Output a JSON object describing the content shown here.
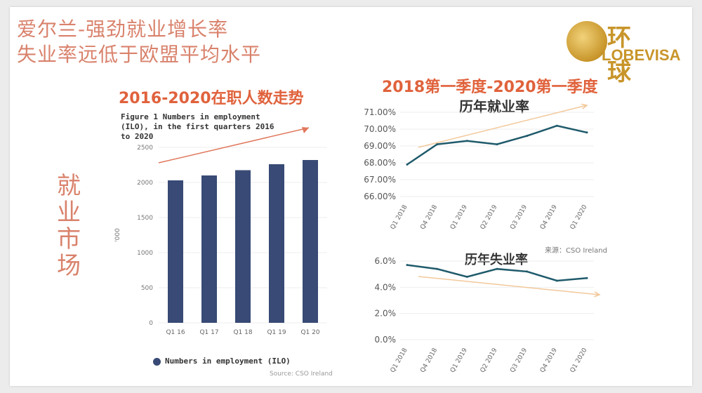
{
  "header": {
    "line1": "爱尔兰-强劲就业增长率",
    "line2": "失业率远低于欧盟平均水平"
  },
  "logo": {
    "cn": "环球",
    "en": "LOBEVISA"
  },
  "side_label": [
    "就",
    "业",
    "市",
    "场"
  ],
  "colors": {
    "bar": "#384a75",
    "line": "#1f5a6b",
    "trend_up": "#e0785c",
    "trend_light": "#f2c89a",
    "title": "#e0623c"
  },
  "chart_data": [
    {
      "type": "bar",
      "title": "2016-2020在职人数走势",
      "caption": "Figure 1 Numbers in employment (ILO), in the first quarters 2016 to 2020",
      "ylabel": "'000",
      "ylim": [
        0,
        2500
      ],
      "yticks": [
        "0",
        "500",
        "1000",
        "1500",
        "2000",
        "2500"
      ],
      "yticks_v": [
        0,
        500,
        1000,
        1500,
        2000,
        2500
      ],
      "categories": [
        "Q1 16",
        "Q1 17",
        "Q1 18",
        "Q1 19",
        "Q1 20"
      ],
      "series": [
        {
          "name": "Numbers in employment (ILO)",
          "values": [
            2030,
            2100,
            2175,
            2260,
            2320
          ]
        }
      ],
      "source": "Source: CSO Ireland"
    },
    {
      "type": "line",
      "title": "2018第一季度-2020第一季度",
      "subtitle": "历年就业率",
      "ylim": [
        66,
        71
      ],
      "yticks": [
        "66.00%",
        "67.00%",
        "68.00%",
        "69.00%",
        "70.00%",
        "71.00%"
      ],
      "yticks_v": [
        66,
        67,
        68,
        69,
        70,
        71
      ],
      "categories": [
        "Q1 2018",
        "Q4 2018",
        "Q1 2019",
        "Q2 2019",
        "Q3 2019",
        "Q4 2019",
        "Q1 2020"
      ],
      "series": [
        {
          "values": [
            67.9,
            69.1,
            69.3,
            69.1,
            69.6,
            70.2,
            69.8
          ]
        }
      ],
      "source": "来源：CSO Ireland"
    },
    {
      "type": "line",
      "subtitle": "历年失业率",
      "ylim": [
        0,
        6
      ],
      "yticks": [
        "0.0%",
        "2.0%",
        "4.0%",
        "6.0%"
      ],
      "yticks_v": [
        0,
        2,
        4,
        6
      ],
      "categories": [
        "Q1 2018",
        "Q4 2018",
        "Q1 2019",
        "Q2 2019",
        "Q3 2019",
        "Q4 2019",
        "Q1 2020"
      ],
      "series": [
        {
          "values": [
            5.7,
            5.4,
            4.8,
            5.4,
            5.2,
            4.5,
            4.7
          ]
        }
      ]
    }
  ]
}
